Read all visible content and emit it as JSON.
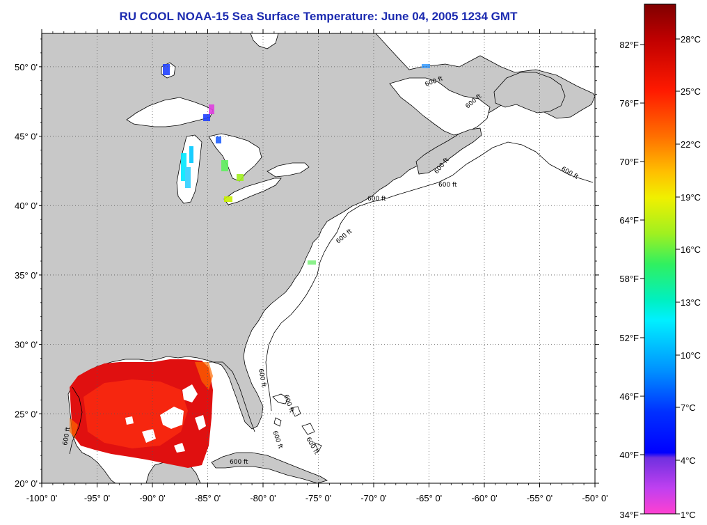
{
  "title": "RU COOL  NOAA-15  Sea Surface Temperature:  June 04, 2005 1234 GMT",
  "map": {
    "lon_range": [
      -100,
      -50
    ],
    "lat_range": [
      20,
      52.4
    ],
    "lat_ticks": [
      {
        "value": 50,
        "label": "50° 0'"
      },
      {
        "value": 45,
        "label": "45° 0'"
      },
      {
        "value": 40,
        "label": "40° 0'"
      },
      {
        "value": 35,
        "label": "35° 0'"
      },
      {
        "value": 30,
        "label": "30° 0'"
      },
      {
        "value": 25,
        "label": "25° 0'"
      },
      {
        "value": 20,
        "label": "20° 0'"
      }
    ],
    "lon_ticks": [
      {
        "value": -100,
        "label": "-100° 0'"
      },
      {
        "value": -95,
        "label": "-95° 0'"
      },
      {
        "value": -90,
        "label": "-90° 0'"
      },
      {
        "value": -85,
        "label": "-85° 0'"
      },
      {
        "value": -80,
        "label": "-80° 0'"
      },
      {
        "value": -75,
        "label": "-75° 0'"
      },
      {
        "value": -70,
        "label": "-70° 0'"
      },
      {
        "value": -65,
        "label": "-65° 0'"
      },
      {
        "value": -60,
        "label": "-60° 0'"
      },
      {
        "value": -55,
        "label": "-55° 0'"
      },
      {
        "value": -50,
        "label": "-50° 0'"
      }
    ],
    "gridlines": true,
    "isobath_labels": [
      "600 ft",
      "600 ft",
      "600 ft",
      "600 ft",
      "600 ft",
      "600 ft",
      "600 ft",
      "600 ft",
      "600 ft",
      "600 ft",
      "600 ft",
      "600 ft",
      "600 ft"
    ],
    "colors": {
      "land": "#c8c8c8",
      "ocean": "#ffffff",
      "grid": "#555555"
    }
  },
  "colorbar": {
    "fahrenheit_labels": [
      "82°F",
      "76°F",
      "70°F",
      "64°F",
      "58°F",
      "52°F",
      "46°F",
      "40°F",
      "34°F"
    ],
    "celsius_labels": [
      "28°C",
      "25°C",
      "22°C",
      "19°C",
      "16°C",
      "13°C",
      "10°C",
      "7°C",
      "4°C",
      "1°C"
    ],
    "colors_top_to_bottom": [
      "#800000",
      "#d40000",
      "#ff3000",
      "#ff7800",
      "#ffc000",
      "#f0f000",
      "#a8f000",
      "#40f040",
      "#00f0b0",
      "#00f0ff",
      "#00b0ff",
      "#0060ff",
      "#0000ff",
      "#8040e0",
      "#e040f0",
      "#ff40d0"
    ]
  }
}
